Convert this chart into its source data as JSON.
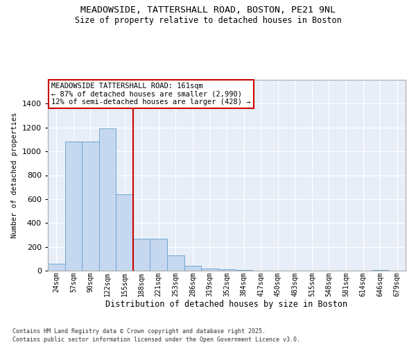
{
  "title_line1": "MEADOWSIDE, TATTERSHALL ROAD, BOSTON, PE21 9NL",
  "title_line2": "Size of property relative to detached houses in Boston",
  "xlabel": "Distribution of detached houses by size in Boston",
  "ylabel": "Number of detached properties",
  "categories": [
    "24sqm",
    "57sqm",
    "90sqm",
    "122sqm",
    "155sqm",
    "188sqm",
    "221sqm",
    "253sqm",
    "286sqm",
    "319sqm",
    "352sqm",
    "384sqm",
    "417sqm",
    "450sqm",
    "483sqm",
    "515sqm",
    "548sqm",
    "581sqm",
    "614sqm",
    "646sqm",
    "679sqm"
  ],
  "values": [
    60,
    1080,
    1080,
    1190,
    640,
    270,
    270,
    130,
    40,
    20,
    10,
    5,
    0,
    0,
    0,
    0,
    0,
    0,
    0,
    5,
    0
  ],
  "bar_color": "#c5d8ef",
  "bar_edge_color": "#6ea6d0",
  "vline_x": 4.5,
  "vline_color": "#cc0000",
  "annotation_text": "MEADOWSIDE TATTERSHALL ROAD: 161sqm\n← 87% of detached houses are smaller (2,990)\n12% of semi-detached houses are larger (428) →",
  "annotation_box_color": "#cc0000",
  "background_color": "#e8eef8",
  "grid_color": "#ffffff",
  "ylim": [
    0,
    1600
  ],
  "yticks": [
    0,
    200,
    400,
    600,
    800,
    1000,
    1200,
    1400
  ],
  "footnote_line1": "Contains HM Land Registry data © Crown copyright and database right 2025.",
  "footnote_line2": "Contains public sector information licensed under the Open Government Licence v3.0."
}
